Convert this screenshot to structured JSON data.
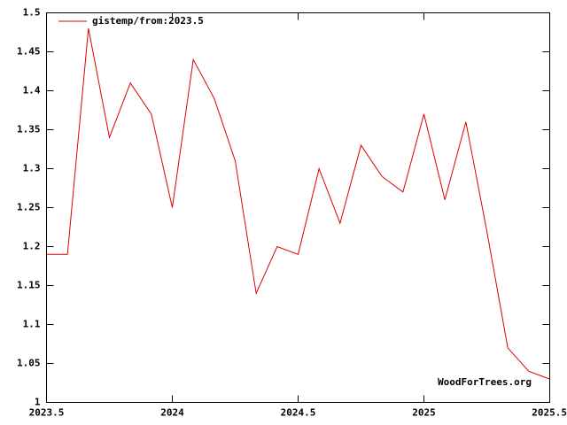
{
  "chart_data": {
    "type": "line",
    "x": [
      2023.5,
      2023.5833,
      2023.6667,
      2023.75,
      2023.8333,
      2023.9167,
      2024,
      2024.0833,
      2024.1667,
      2024.25,
      2024.3333,
      2024.4167,
      2024.5,
      2024.5833,
      2024.6667,
      2024.75,
      2024.8333,
      2024.9167,
      2025,
      2025.0833,
      2025.1667,
      2025.25,
      2025.3333,
      2025.4167,
      2025.5
    ],
    "series": [
      {
        "name": "gistemp/from:2023.5",
        "color": "#dd0000",
        "values": [
          1.19,
          1.19,
          1.48,
          1.34,
          1.41,
          1.37,
          1.25,
          1.44,
          1.39,
          1.31,
          1.14,
          1.2,
          1.19,
          1.3,
          1.23,
          1.33,
          1.29,
          1.27,
          1.37,
          1.26,
          1.36,
          1.22,
          1.07,
          1.04,
          1.03
        ]
      }
    ],
    "xlim": [
      2023.5,
      2025.5
    ],
    "xticks": [
      2023.5,
      2024,
      2024.5,
      2025,
      2025.5
    ],
    "ylim": [
      1,
      1.5
    ],
    "yticks": [
      1,
      1.05,
      1.1,
      1.15,
      1.2,
      1.25,
      1.3,
      1.35,
      1.4,
      1.45,
      1.5
    ],
    "grid": false,
    "legend": "top-left",
    "annotation": "WoodForTrees.org"
  }
}
